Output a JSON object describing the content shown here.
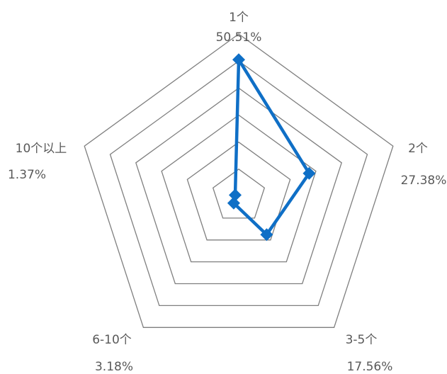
{
  "chart_data": {
    "type": "radar",
    "title": "",
    "categories": [
      "1个",
      "2个",
      "3-5个",
      "6-10个",
      "10个以上"
    ],
    "series": [
      {
        "values": [
          50.51,
          27.38,
          17.56,
          3.18,
          1.37
        ]
      }
    ],
    "value_labels": [
      "50.51%",
      "27.38%",
      "17.56%",
      "3.18%",
      "1.37%"
    ],
    "rlim": [
      0,
      60
    ],
    "grid_rings": 6,
    "legend": "none",
    "colors": {
      "series": "#0F6FC6",
      "grid": "#7F7F7F",
      "text": "#595959"
    }
  }
}
